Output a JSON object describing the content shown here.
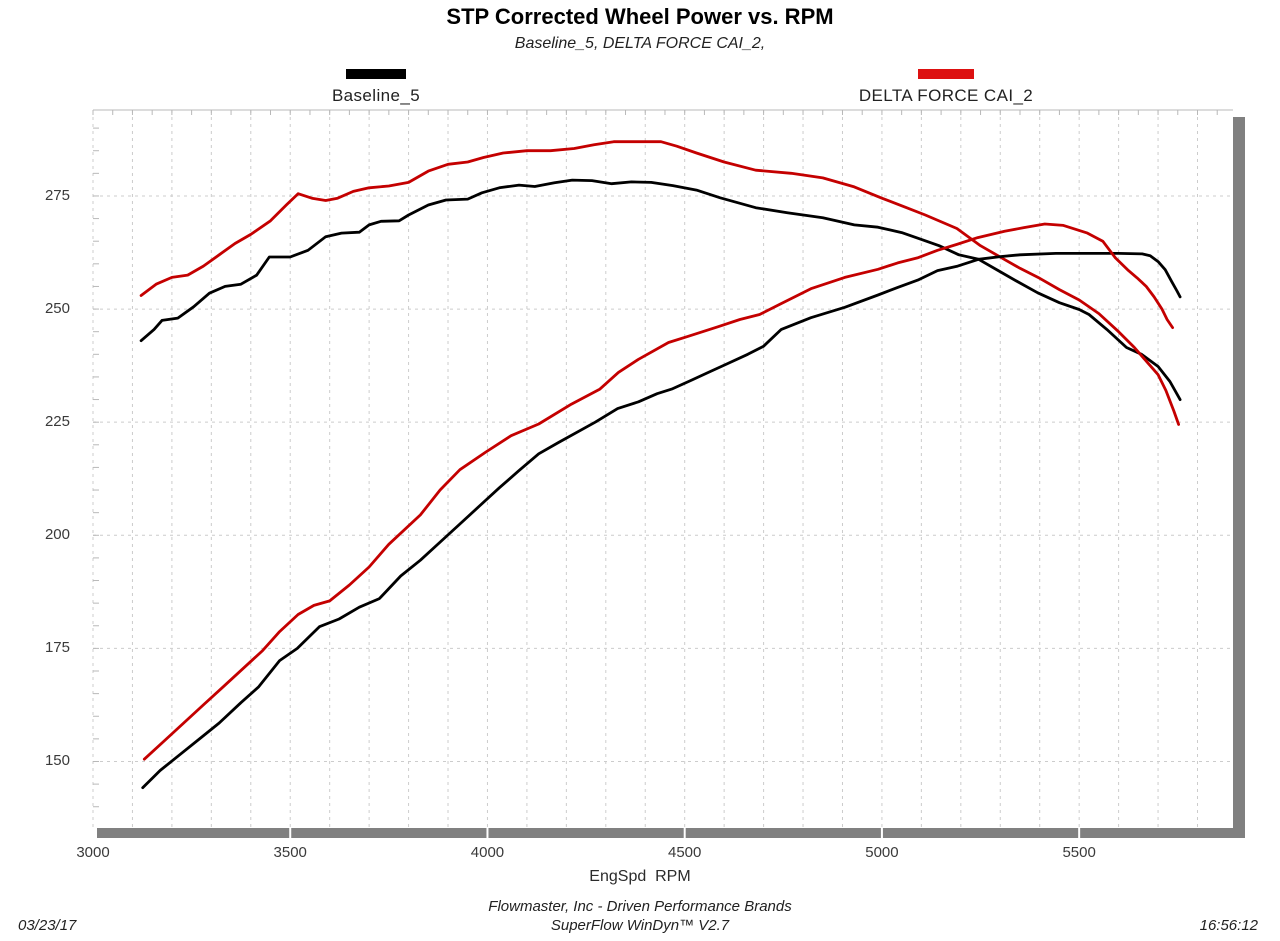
{
  "header": {
    "title": "STP Corrected Wheel Power vs. RPM",
    "subtitle": "Baseline_5, DELTA FORCE CAI_2,"
  },
  "legend": [
    {
      "label": "Baseline_5",
      "color": "#000000"
    },
    {
      "label": "DELTA FORCE CAI_2",
      "color": "#dd1111"
    }
  ],
  "axes": {
    "x": {
      "label": "EngSpd  RPM",
      "ticks": [
        3000,
        3500,
        4000,
        4500,
        5000,
        5500
      ],
      "minor_step": 100
    },
    "y": {
      "ticks": [
        150,
        175,
        200,
        225,
        250,
        275
      ],
      "major_step": 25,
      "minor_step": 5
    }
  },
  "footer": {
    "date": "03/23/17",
    "company_line": "Flowmaster, Inc - Driven Performance Brands",
    "software_line": "SuperFlow WinDyn™ V2.7",
    "time": "16:56:12"
  },
  "colors": {
    "grid": "#cccccc",
    "frame_light": "#b8b8b8",
    "axis_bar": "#808080",
    "baseline_curve": "#000000",
    "delta_curve": "#c40000"
  },
  "chart_data": {
    "type": "line",
    "title": "STP Corrected Wheel Power vs. RPM",
    "subtitle": "Baseline_5, DELTA FORCE CAI_2,",
    "xlabel": "EngSpd RPM",
    "ylabel": "",
    "xlim": [
      3000,
      5890
    ],
    "ylim": [
      135.3,
      294
    ],
    "grid": true,
    "legend_position": "top",
    "x_ticks": [
      3000,
      3500,
      4000,
      4500,
      5000,
      5500
    ],
    "y_ticks": [
      150,
      175,
      200,
      225,
      250,
      275
    ],
    "series": [
      {
        "name": "Baseline_5 (torque curve)",
        "color": "#000000",
        "points": [
          [
            3122,
            243
          ],
          [
            3155,
            245.5
          ],
          [
            3175,
            247.5
          ],
          [
            3215,
            248
          ],
          [
            3255,
            250.5
          ],
          [
            3295,
            253.5
          ],
          [
            3335,
            255
          ],
          [
            3375,
            255.5
          ],
          [
            3415,
            257.5
          ],
          [
            3447,
            261.5
          ],
          [
            3500,
            261.5
          ],
          [
            3545,
            263
          ],
          [
            3590,
            266
          ],
          [
            3630,
            266.8
          ],
          [
            3675,
            267
          ],
          [
            3700,
            268.6
          ],
          [
            3730,
            269.4
          ],
          [
            3776,
            269.5
          ],
          [
            3800,
            270.8
          ],
          [
            3850,
            273
          ],
          [
            3895,
            274.1
          ],
          [
            3950,
            274.3
          ],
          [
            3986,
            275.7
          ],
          [
            4030,
            276.8
          ],
          [
            4080,
            277.4
          ],
          [
            4120,
            277.1
          ],
          [
            4170,
            277.9
          ],
          [
            4215,
            278.5
          ],
          [
            4265,
            278.4
          ],
          [
            4315,
            277.7
          ],
          [
            4365,
            278.1
          ],
          [
            4415,
            278
          ],
          [
            4470,
            277.3
          ],
          [
            4530,
            276.3
          ],
          [
            4590,
            274.6
          ],
          [
            4680,
            272.4
          ],
          [
            4760,
            271.3
          ],
          [
            4850,
            270.2
          ],
          [
            4930,
            268.6
          ],
          [
            4990,
            268.1
          ],
          [
            5050,
            266.9
          ],
          [
            5100,
            265.4
          ],
          [
            5145,
            264
          ],
          [
            5195,
            262
          ],
          [
            5245,
            261
          ],
          [
            5295,
            258.5
          ],
          [
            5345,
            256
          ],
          [
            5395,
            253.6
          ],
          [
            5450,
            251.4
          ],
          [
            5500,
            249.9
          ],
          [
            5525,
            248.8
          ],
          [
            5570,
            245.5
          ],
          [
            5620,
            241.5
          ],
          [
            5658,
            240
          ],
          [
            5700,
            237.3
          ],
          [
            5730,
            234
          ],
          [
            5756,
            230
          ]
        ]
      },
      {
        "name": "DELTA FORCE CAI_2 (torque curve)",
        "color": "#c40000",
        "points": [
          [
            3122,
            253
          ],
          [
            3160,
            255.5
          ],
          [
            3200,
            257
          ],
          [
            3240,
            257.5
          ],
          [
            3280,
            259.5
          ],
          [
            3320,
            262
          ],
          [
            3360,
            264.5
          ],
          [
            3400,
            266.5
          ],
          [
            3450,
            269.5
          ],
          [
            3490,
            273
          ],
          [
            3520,
            275.5
          ],
          [
            3555,
            274.5
          ],
          [
            3590,
            274
          ],
          [
            3620,
            274.5
          ],
          [
            3660,
            276
          ],
          [
            3700,
            276.8
          ],
          [
            3750,
            277.2
          ],
          [
            3800,
            278
          ],
          [
            3850,
            280.5
          ],
          [
            3900,
            282
          ],
          [
            3950,
            282.5
          ],
          [
            3990,
            283.5
          ],
          [
            4040,
            284.5
          ],
          [
            4100,
            285
          ],
          [
            4160,
            285
          ],
          [
            4220,
            285.5
          ],
          [
            4270,
            286.3
          ],
          [
            4320,
            287
          ],
          [
            4380,
            287
          ],
          [
            4440,
            287
          ],
          [
            4480,
            286
          ],
          [
            4530,
            284.5
          ],
          [
            4600,
            282.5
          ],
          [
            4680,
            280.7
          ],
          [
            4770,
            280
          ],
          [
            4850,
            279
          ],
          [
            4930,
            277
          ],
          [
            5000,
            274.5
          ],
          [
            5060,
            272.5
          ],
          [
            5110,
            270.8
          ],
          [
            5190,
            267.8
          ],
          [
            5250,
            264
          ],
          [
            5310,
            261
          ],
          [
            5350,
            259
          ],
          [
            5400,
            256.8
          ],
          [
            5450,
            254.3
          ],
          [
            5500,
            252
          ],
          [
            5550,
            249
          ],
          [
            5600,
            245
          ],
          [
            5640,
            241.5
          ],
          [
            5670,
            238.5
          ],
          [
            5700,
            235.5
          ],
          [
            5720,
            232
          ],
          [
            5740,
            227.5
          ],
          [
            5752,
            224.5
          ]
        ]
      },
      {
        "name": "Baseline_5 (power curve)",
        "color": "#000000",
        "points": [
          [
            3126,
            144.2
          ],
          [
            3170,
            148
          ],
          [
            3220,
            151.5
          ],
          [
            3270,
            155
          ],
          [
            3320,
            158.5
          ],
          [
            3375,
            163
          ],
          [
            3420,
            166.5
          ],
          [
            3473,
            172.3
          ],
          [
            3518,
            175
          ],
          [
            3574,
            179.8
          ],
          [
            3624,
            181.5
          ],
          [
            3675,
            184.1
          ],
          [
            3726,
            186
          ],
          [
            3780,
            191
          ],
          [
            3830,
            194.5
          ],
          [
            3880,
            198.5
          ],
          [
            3930,
            202.5
          ],
          [
            3980,
            206.5
          ],
          [
            4030,
            210.5
          ],
          [
            4080,
            214.3
          ],
          [
            4130,
            218
          ],
          [
            4180,
            220.5
          ],
          [
            4273,
            225
          ],
          [
            4330,
            228
          ],
          [
            4383,
            229.5
          ],
          [
            4430,
            231.3
          ],
          [
            4467,
            232.3
          ],
          [
            4510,
            234
          ],
          [
            4560,
            236
          ],
          [
            4610,
            238
          ],
          [
            4660,
            240
          ],
          [
            4700,
            241.8
          ],
          [
            4745,
            245.5
          ],
          [
            4820,
            248.1
          ],
          [
            4906,
            250.4
          ],
          [
            4990,
            253.1
          ],
          [
            5040,
            254.8
          ],
          [
            5091,
            256.4
          ],
          [
            5141,
            258.5
          ],
          [
            5192,
            259.5
          ],
          [
            5245,
            261
          ],
          [
            5300,
            261.6
          ],
          [
            5350,
            262
          ],
          [
            5441,
            262.3
          ],
          [
            5520,
            262.3
          ],
          [
            5600,
            262.3
          ],
          [
            5660,
            262.2
          ],
          [
            5680,
            261.8
          ],
          [
            5700,
            260.5
          ],
          [
            5718,
            258.7
          ],
          [
            5735,
            256
          ],
          [
            5748,
            254
          ],
          [
            5756,
            252.7
          ]
        ]
      },
      {
        "name": "DELTA FORCE CAI_2 (power curve)",
        "color": "#c40000",
        "points": [
          [
            3130,
            150.5
          ],
          [
            3180,
            154.5
          ],
          [
            3230,
            158.5
          ],
          [
            3280,
            162.5
          ],
          [
            3330,
            166.5
          ],
          [
            3380,
            170.5
          ],
          [
            3430,
            174.5
          ],
          [
            3473,
            178.7
          ],
          [
            3520,
            182.5
          ],
          [
            3560,
            184.5
          ],
          [
            3600,
            185.5
          ],
          [
            3650,
            189
          ],
          [
            3700,
            193
          ],
          [
            3750,
            198
          ],
          [
            3830,
            204.5
          ],
          [
            3880,
            210
          ],
          [
            3930,
            214.5
          ],
          [
            3996,
            218.4
          ],
          [
            4060,
            222
          ],
          [
            4130,
            224.6
          ],
          [
            4213,
            229
          ],
          [
            4285,
            232.3
          ],
          [
            4332,
            236
          ],
          [
            4383,
            238.9
          ],
          [
            4459,
            242.6
          ],
          [
            4510,
            244
          ],
          [
            4585,
            246.1
          ],
          [
            4640,
            247.7
          ],
          [
            4690,
            248.8
          ],
          [
            4740,
            251
          ],
          [
            4820,
            254.5
          ],
          [
            4906,
            257
          ],
          [
            4990,
            258.8
          ],
          [
            5040,
            260.2
          ],
          [
            5090,
            261.3
          ],
          [
            5141,
            263
          ],
          [
            5190,
            264.3
          ],
          [
            5243,
            265.8
          ],
          [
            5311,
            267.2
          ],
          [
            5360,
            268
          ],
          [
            5413,
            268.8
          ],
          [
            5460,
            268.5
          ],
          [
            5521,
            266.8
          ],
          [
            5560,
            265
          ],
          [
            5592,
            261.3
          ],
          [
            5625,
            258.5
          ],
          [
            5647,
            256.9
          ],
          [
            5670,
            255
          ],
          [
            5690,
            252.7
          ],
          [
            5710,
            250
          ],
          [
            5723,
            247.7
          ],
          [
            5737,
            245.9
          ]
        ]
      }
    ]
  }
}
